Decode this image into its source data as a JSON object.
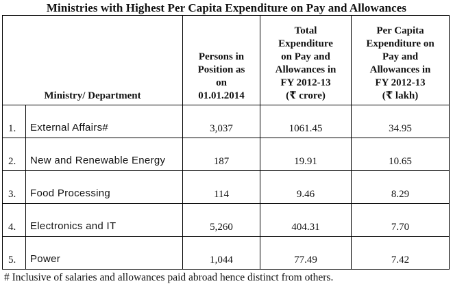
{
  "title": "Ministries with Highest Per Capita Expenditure on Pay and Allowances",
  "table": {
    "headers": {
      "ministry": "Ministry/ Department",
      "persons": [
        "Persons in",
        "Position as",
        "on",
        "01.01.2014"
      ],
      "total": [
        "Total",
        "Expenditure",
        "on Pay and",
        "Allowances in",
        "FY 2012-13",
        "(₹ crore)"
      ],
      "per_capita": [
        "Per Capita",
        "Expenditure on",
        "Pay and",
        "Allowances in",
        "FY 2012-13",
        "(₹ lakh)"
      ]
    },
    "rows": [
      {
        "num": "1.",
        "ministry": "External Affairs#",
        "persons": "3,037",
        "total": "1061.45",
        "per_capita": "34.95"
      },
      {
        "num": "2.",
        "ministry": "New and Renewable Energy",
        "persons": "187",
        "total": "19.91",
        "per_capita": "10.65"
      },
      {
        "num": "3.",
        "ministry": "Food Processing",
        "persons": "114",
        "total": "9.46",
        "per_capita": "8.29"
      },
      {
        "num": "4.",
        "ministry": "Electronics and IT",
        "persons": "5,260",
        "total": "404.31",
        "per_capita": "7.70"
      },
      {
        "num": "5.",
        "ministry": "Power",
        "persons": "1,044",
        "total": "77.49",
        "per_capita": "7.42"
      }
    ]
  },
  "footnote": "# Inclusive of salaries and allowances paid abroad hence distinct from others."
}
